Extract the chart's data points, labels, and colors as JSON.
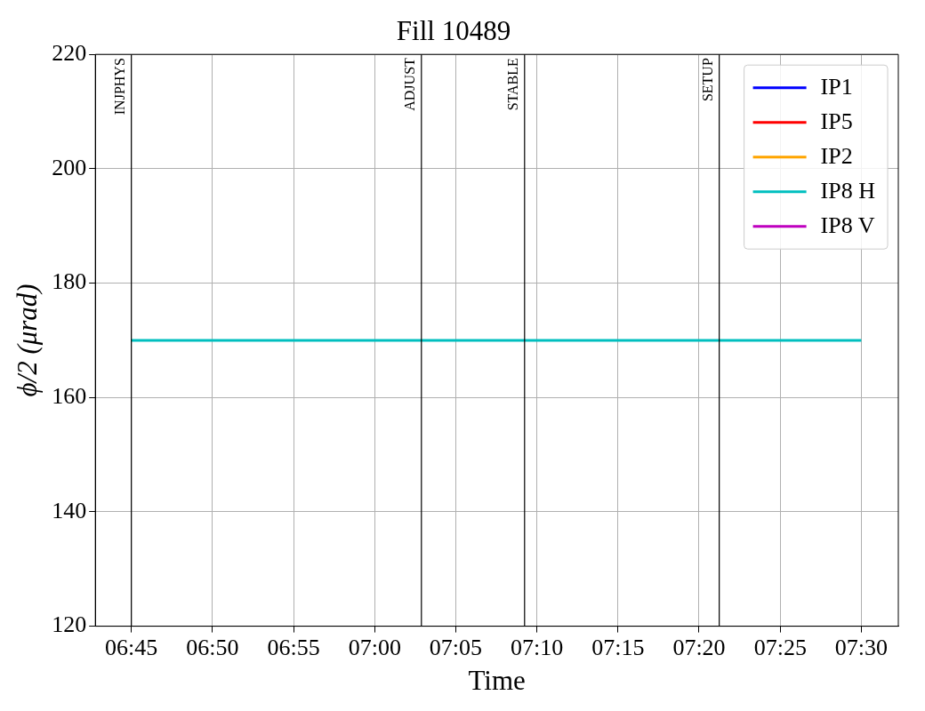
{
  "chart_data": {
    "type": "line",
    "title": "Fill 10489",
    "xlabel": "Time",
    "ylabel": "ϕ/2 (μrad)",
    "xlim": [
      6.713,
      7.538
    ],
    "xticks": [
      {
        "value": 6.75,
        "label": "06:45"
      },
      {
        "value": 6.8333,
        "label": "06:50"
      },
      {
        "value": 6.9167,
        "label": "06:55"
      },
      {
        "value": 7.0,
        "label": "07:00"
      },
      {
        "value": 7.0833,
        "label": "07:05"
      },
      {
        "value": 7.1667,
        "label": "07:10"
      },
      {
        "value": 7.25,
        "label": "07:15"
      },
      {
        "value": 7.3333,
        "label": "07:20"
      },
      {
        "value": 7.4167,
        "label": "07:25"
      },
      {
        "value": 7.5,
        "label": "07:30"
      }
    ],
    "ylim": [
      120,
      220
    ],
    "yticks": [
      120,
      140,
      160,
      180,
      200,
      220
    ],
    "grid": true,
    "legend": "top right",
    "marker": "none",
    "line_style": "solid",
    "series": [
      {
        "name": "IP1",
        "color": "#0000ff"
      },
      {
        "name": "IP5",
        "color": "#ff0000"
      },
      {
        "name": "IP2",
        "color": "#ffa500"
      },
      {
        "name": "IP8 H",
        "color": "#00bfbf",
        "x": [
          6.75,
          7.5
        ],
        "values": [
          170,
          170
        ]
      },
      {
        "name": "IP8 V",
        "color": "#bf00bf"
      }
    ],
    "ref_lines": [
      {
        "axis": "x",
        "value": 6.75,
        "label": "INJPHYS",
        "color": "#000000"
      },
      {
        "axis": "x",
        "value": 7.048,
        "label": "ADJUST",
        "color": "#000000"
      },
      {
        "axis": "x",
        "value": 7.154,
        "label": "STABLE",
        "color": "#000000"
      },
      {
        "axis": "x",
        "value": 7.354,
        "label": "SETUP",
        "color": "#000000"
      }
    ]
  }
}
